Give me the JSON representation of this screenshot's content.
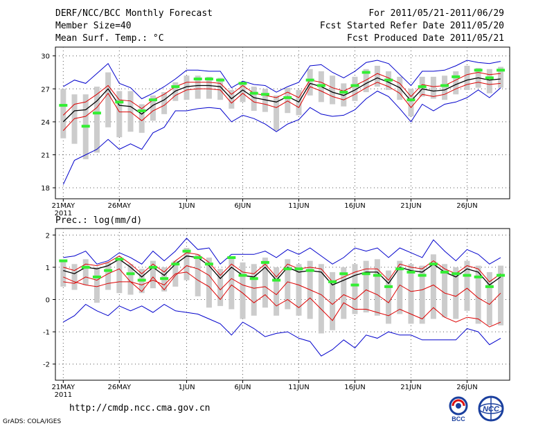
{
  "header": {
    "title": "DERF/NCC/BCC Monthly Forecast",
    "member_size": "Member Size=40",
    "variable": "Mean Surf. Temp.: °C",
    "period": "For 2011/05/21-2011/06/29",
    "fcst_start": "Fcst Started Refer Date 2011/05/20",
    "fcst_produced": "Fcst Produced Date 2011/05/21"
  },
  "footer": {
    "url": "http://cmdp.ncc.cma.gov.cn",
    "grads": "GrADS: COLA/IGES",
    "logo_bcc": "BCC",
    "logo_ncc": "NCC"
  },
  "colors": {
    "mean": "#000000",
    "spread": "#dd0000",
    "extreme": "#0000cc",
    "box": "#cccccc",
    "obs": "#33ee33",
    "grid": "#555555"
  },
  "chart_data": [
    {
      "type": "line",
      "title": "Mean Surf. Temp.: °C",
      "x_tick_labels": [
        "21MAY",
        "26MAY",
        "1JUN",
        "6JUN",
        "11JUN",
        "16JUN",
        "21JUN",
        "26JUN"
      ],
      "x_tick_days": [
        1,
        6,
        12,
        17,
        22,
        27,
        32,
        37
      ],
      "x_year_label": "2011",
      "y_ticks": [
        "18",
        "21",
        "24",
        "27",
        "30"
      ],
      "ylim": [
        17,
        30.8
      ],
      "days": 40,
      "series": [
        {
          "name": "ensemble-mean",
          "values": [
            24.0,
            25.0,
            25.1,
            25.9,
            27.0,
            25.5,
            25.4,
            24.7,
            25.5,
            26.0,
            26.8,
            27.2,
            27.3,
            27.3,
            27.2,
            26.1,
            26.9,
            26.2,
            26.0,
            25.8,
            26.3,
            25.8,
            27.5,
            27.2,
            26.7,
            26.4,
            26.9,
            27.5,
            28.0,
            27.6,
            27.1,
            25.9,
            27.0,
            26.8,
            26.9,
            27.4,
            27.8,
            28.0,
            27.8,
            27.9
          ]
        },
        {
          "name": "upper-spread",
          "values": [
            24.6,
            25.6,
            25.8,
            26.5,
            27.3,
            26.0,
            25.9,
            25.2,
            26.0,
            26.5,
            27.2,
            27.6,
            27.6,
            27.6,
            27.5,
            26.5,
            27.3,
            26.6,
            26.4,
            26.2,
            26.7,
            26.2,
            27.8,
            27.6,
            27.1,
            26.8,
            27.3,
            27.8,
            28.4,
            28.0,
            27.5,
            26.3,
            27.4,
            27.2,
            27.3,
            27.8,
            28.3,
            28.5,
            28.3,
            28.4
          ]
        },
        {
          "name": "lower-spread",
          "values": [
            23.2,
            24.3,
            24.5,
            25.3,
            26.6,
            24.9,
            24.9,
            24.1,
            25.0,
            25.5,
            26.4,
            26.9,
            27.0,
            27.0,
            26.9,
            25.7,
            26.6,
            25.8,
            25.6,
            25.3,
            25.9,
            25.3,
            27.2,
            26.8,
            26.3,
            26.0,
            26.5,
            27.1,
            27.6,
            27.2,
            26.6,
            25.3,
            26.5,
            26.3,
            26.5,
            27.0,
            27.4,
            27.6,
            27.4,
            27.5
          ]
        },
        {
          "name": "member-max",
          "values": [
            27.2,
            27.8,
            27.5,
            28.4,
            29.3,
            27.5,
            27.1,
            26.1,
            26.6,
            27.2,
            27.9,
            28.7,
            28.7,
            28.6,
            28.6,
            27.1,
            27.7,
            27.4,
            27.3,
            26.7,
            27.2,
            27.6,
            29.1,
            29.2,
            28.5,
            28.0,
            28.6,
            29.4,
            29.6,
            29.3,
            28.3,
            27.3,
            28.6,
            28.6,
            28.7,
            29.1,
            29.6,
            29.4,
            29.3,
            29.5
          ]
        },
        {
          "name": "member-min",
          "values": [
            18.3,
            20.5,
            21.0,
            21.5,
            22.4,
            21.5,
            22.0,
            21.5,
            23.0,
            23.5,
            25.0,
            25.0,
            25.2,
            25.3,
            25.2,
            24.0,
            24.6,
            24.3,
            23.8,
            23.1,
            23.8,
            24.2,
            25.3,
            24.7,
            24.5,
            24.6,
            25.1,
            26.1,
            26.8,
            26.3,
            25.2,
            24.0,
            25.6,
            25.0,
            25.6,
            25.8,
            26.2,
            26.9,
            26.2,
            27.1
          ]
        }
      ],
      "boxes_hi": [
        27.0,
        26.5,
        26.5,
        27.2,
        28.5,
        26.8,
        26.8,
        25.6,
        26.4,
        26.7,
        27.6,
        28.2,
        28.2,
        28.1,
        28.0,
        26.9,
        27.4,
        27.2,
        27.0,
        26.4,
        27.1,
        26.9,
        28.8,
        28.6,
        28.2,
        27.5,
        28.1,
        28.8,
        29.1,
        28.6,
        28.1,
        27.0,
        28.1,
        28.1,
        28.2,
        28.6,
        29.1,
        28.9,
        28.8,
        29.0
      ],
      "boxes_lo": [
        22.5,
        22.0,
        20.6,
        21.2,
        23.5,
        22.6,
        23.1,
        23.0,
        24.1,
        24.7,
        25.9,
        26.0,
        26.1,
        26.1,
        26.0,
        25.2,
        25.8,
        25.0,
        24.9,
        23.2,
        24.8,
        24.6,
        26.4,
        25.8,
        25.6,
        25.4,
        25.9,
        26.7,
        27.2,
        26.9,
        26.0,
        24.5,
        26.3,
        26.1,
        26.0,
        26.5,
        26.9,
        27.1,
        26.6,
        27.1
      ],
      "obs": [
        25.5,
        null,
        23.6,
        24.8,
        null,
        25.8,
        null,
        25.0,
        26.0,
        null,
        27.2,
        null,
        27.9,
        27.9,
        27.8,
        null,
        27.5,
        26.6,
        26.5,
        null,
        26.2,
        null,
        27.8,
        27.3,
        null,
        26.7,
        27.3,
        28.5,
        null,
        27.8,
        null,
        26.0,
        27.2,
        null,
        27.3,
        28.1,
        null,
        28.7,
        28.0,
        28.7
      ]
    },
    {
      "type": "line",
      "title": "Prec.: log(mm/d)",
      "x_tick_labels": [
        "21MAY",
        "26MAY",
        "1JUN",
        "6JUN",
        "11JUN",
        "16JUN",
        "21JUN",
        "26JUN"
      ],
      "x_tick_days": [
        1,
        6,
        12,
        17,
        22,
        27,
        32,
        37
      ],
      "x_year_label": "2011",
      "y_ticks": [
        "-2",
        "-1",
        "0",
        "1",
        "2"
      ],
      "ylim": [
        -2.5,
        2.2
      ],
      "days": 40,
      "series": [
        {
          "name": "ensemble-mean",
          "values": [
            0.9,
            0.8,
            1.0,
            0.95,
            1.05,
            1.25,
            1.0,
            0.7,
            1.0,
            0.75,
            1.1,
            1.35,
            1.3,
            1.05,
            0.65,
            1.0,
            0.75,
            0.7,
            1.0,
            0.6,
            1.0,
            0.85,
            0.9,
            0.85,
            0.45,
            0.6,
            0.75,
            0.85,
            0.85,
            0.5,
            1.0,
            0.9,
            0.85,
            1.1,
            0.85,
            0.7,
            0.95,
            0.85,
            0.45,
            0.7
          ]
        },
        {
          "name": "upper-spread",
          "values": [
            1.0,
            0.9,
            1.1,
            1.05,
            1.15,
            1.35,
            1.1,
            0.8,
            1.1,
            0.85,
            1.2,
            1.45,
            1.4,
            1.15,
            0.75,
            1.1,
            0.85,
            0.8,
            1.1,
            0.7,
            1.1,
            0.95,
            1.0,
            0.95,
            0.55,
            0.7,
            0.85,
            0.95,
            0.95,
            0.6,
            1.1,
            1.0,
            0.95,
            1.2,
            0.95,
            0.8,
            1.05,
            0.95,
            0.55,
            0.8
          ]
        },
        {
          "name": "lower-spread",
          "values": [
            0.55,
            0.5,
            0.7,
            0.6,
            0.8,
            0.95,
            0.55,
            0.25,
            0.7,
            0.3,
            0.75,
            1.05,
            0.95,
            0.75,
            0.3,
            0.65,
            0.45,
            0.35,
            0.4,
            0.15,
            0.55,
            0.45,
            0.3,
            0.15,
            -0.15,
            0.15,
            0.0,
            0.3,
            0.15,
            -0.1,
            0.45,
            0.25,
            0.3,
            0.45,
            0.2,
            0.1,
            0.35,
            0.05,
            -0.15,
            0.2
          ]
        },
        {
          "name": "member-max",
          "values": [
            1.3,
            1.35,
            1.5,
            1.1,
            1.2,
            1.45,
            1.3,
            1.1,
            1.5,
            1.2,
            1.5,
            1.9,
            1.55,
            1.6,
            1.1,
            1.4,
            1.4,
            1.4,
            1.5,
            1.3,
            1.55,
            1.4,
            1.6,
            1.35,
            1.1,
            1.3,
            1.6,
            1.5,
            1.6,
            1.3,
            1.6,
            1.45,
            1.3,
            1.85,
            1.5,
            1.2,
            1.55,
            1.4,
            1.1,
            1.3
          ]
        },
        {
          "name": "member-min",
          "values": [
            -0.7,
            -0.5,
            -0.15,
            -0.35,
            -0.5,
            -0.2,
            -0.35,
            -0.2,
            -0.4,
            -0.15,
            -0.35,
            -0.4,
            -0.45,
            -0.6,
            -0.75,
            -1.1,
            -0.7,
            -0.9,
            -1.15,
            -1.05,
            -1.0,
            -1.2,
            -1.3,
            -1.75,
            -1.55,
            -1.25,
            -1.5,
            -1.1,
            -1.2,
            -1.0,
            -1.1,
            -1.1,
            -1.25,
            -1.25,
            -1.25,
            -1.25,
            -0.9,
            -1.0,
            -1.4,
            -1.2
          ]
        },
        {
          "name": "spread-low-2",
          "values": [
            0.7,
            0.55,
            0.45,
            0.4,
            0.5,
            0.55,
            0.55,
            0.45,
            0.6,
            0.45,
            0.8,
            0.85,
            0.6,
            0.4,
            0.0,
            0.45,
            0.2,
            -0.1,
            0.15,
            -0.2,
            0.0,
            -0.25,
            0.05,
            -0.3,
            -0.65,
            -0.1,
            -0.3,
            -0.3,
            -0.4,
            -0.5,
            -0.3,
            -0.45,
            -0.6,
            -0.25,
            -0.55,
            -0.7,
            -0.55,
            -0.6,
            -0.85,
            -0.7
          ]
        }
      ],
      "boxes_hi": [
        1.2,
        1.1,
        1.25,
        1.0,
        1.15,
        1.3,
        1.1,
        0.95,
        1.2,
        1.0,
        1.2,
        1.6,
        1.4,
        1.3,
        0.95,
        1.3,
        1.15,
        1.1,
        1.3,
        1.0,
        1.25,
        1.1,
        1.2,
        1.1,
        0.85,
        1.0,
        1.1,
        1.2,
        1.25,
        0.9,
        1.2,
        1.1,
        1.05,
        1.4,
        1.1,
        1.0,
        1.2,
        1.05,
        0.85,
        1.05
      ],
      "boxes_lo": [
        0.4,
        0.3,
        0.45,
        -0.1,
        0.3,
        0.2,
        0.15,
        0.2,
        0.35,
        0.25,
        0.4,
        0.6,
        0.1,
        -0.25,
        -0.2,
        -0.3,
        -0.6,
        -0.5,
        -0.25,
        -0.5,
        -0.3,
        -0.5,
        -0.6,
        -1.05,
        -0.95,
        -0.6,
        -0.45,
        -0.4,
        -0.5,
        -0.75,
        -0.45,
        -0.75,
        -0.75,
        -0.6,
        -0.55,
        -0.6,
        -0.35,
        -0.75,
        -0.8,
        -0.8
      ],
      "obs": [
        1.2,
        null,
        1.0,
        0.7,
        0.9,
        1.25,
        0.8,
        0.6,
        1.0,
        0.65,
        1.1,
        1.5,
        1.3,
        1.1,
        null,
        1.3,
        0.75,
        0.65,
        1.15,
        0.6,
        0.95,
        0.95,
        0.9,
        null,
        0.55,
        0.8,
        0.45,
        0.8,
        0.75,
        0.4,
        0.95,
        0.85,
        0.75,
        1.1,
        0.85,
        0.8,
        0.75,
        0.7,
        0.4,
        0.75
      ]
    }
  ]
}
